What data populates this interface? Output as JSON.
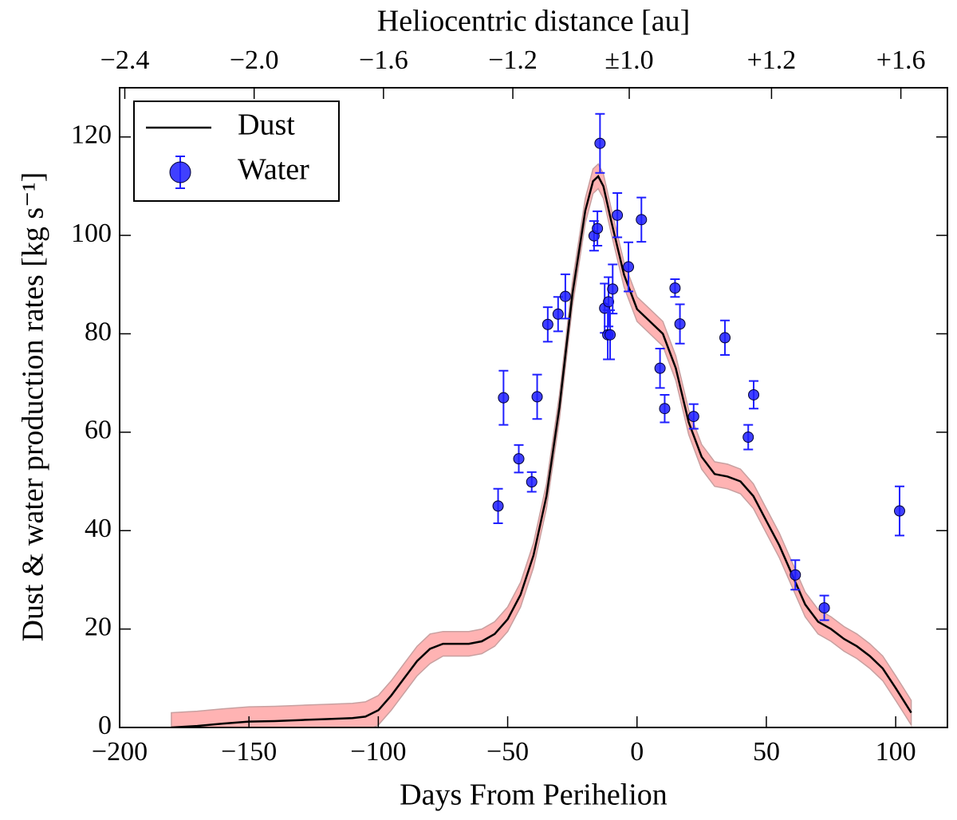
{
  "chart_data": {
    "type": "line",
    "xlabel": "Days From Perihelion",
    "ylabel": "Dust & water production rates [kg s⁻¹]",
    "x2label": "Heliocentric distance [au]",
    "xlim": [
      -200,
      120
    ],
    "ylim": [
      0,
      130
    ],
    "xticks": [
      {
        "value": -200,
        "label": "−200"
      },
      {
        "value": -150,
        "label": "−150"
      },
      {
        "value": -100,
        "label": "−100"
      },
      {
        "value": -50,
        "label": "−50"
      },
      0,
      50,
      100
    ],
    "yticks": [
      0,
      20,
      40,
      60,
      80,
      100,
      120
    ],
    "x2lim": [
      -200,
      120
    ],
    "x2ticks": [
      {
        "value": -198,
        "label": "−2.4"
      },
      {
        "value": -148,
        "label": "−2.0"
      },
      {
        "value": -98,
        "label": "−1.6"
      },
      {
        "value": -48,
        "label": "−1.2"
      },
      {
        "value": -3,
        "label": "±1.0"
      },
      {
        "value": 52,
        "label": "+1.2"
      },
      {
        "value": 102,
        "label": "+1.6"
      }
    ],
    "legend": "upper left",
    "series": [
      {
        "name": "Dust",
        "type": "line",
        "color": "#000000",
        "band_color": "#ffb3b3",
        "x": [
          -180,
          -170,
          -160,
          -150,
          -140,
          -130,
          -120,
          -110,
          -105,
          -100,
          -95,
          -90,
          -85,
          -80,
          -75,
          -70,
          -65,
          -60,
          -55,
          -50,
          -45,
          -40,
          -35,
          -30,
          -25,
          -20,
          -17,
          -15,
          -13,
          -10,
          -5,
          0,
          5,
          10,
          15,
          20,
          25,
          30,
          35,
          40,
          45,
          50,
          55,
          60,
          65,
          70,
          75,
          80,
          85,
          90,
          95,
          100,
          103,
          106
        ],
        "values": [
          0,
          0.3,
          0.8,
          1.2,
          1.3,
          1.5,
          1.7,
          1.9,
          2.2,
          3.5,
          6.5,
          10,
          13.5,
          16,
          17,
          17,
          17,
          17.5,
          19,
          22,
          27,
          35,
          47,
          65,
          88,
          105,
          111,
          112,
          110,
          103,
          92,
          85,
          82.5,
          80,
          73,
          62,
          55,
          51.5,
          51,
          50,
          47,
          42,
          37,
          31,
          25,
          21.5,
          20,
          18,
          16.5,
          14.5,
          12,
          8,
          5.5,
          3
        ],
        "error": [
          3,
          3,
          3,
          3,
          3,
          3,
          3,
          3,
          3,
          3,
          3,
          3,
          3,
          3,
          2.5,
          2.5,
          2.5,
          2.5,
          2.5,
          2.5,
          2.5,
          2.5,
          2.5,
          2.5,
          2.5,
          2.5,
          2.5,
          2.5,
          2.5,
          2.5,
          2.5,
          2.5,
          2.5,
          2.5,
          2.5,
          2.5,
          2.5,
          2.5,
          2.5,
          2.5,
          2.5,
          2.5,
          2.5,
          2.5,
          2.5,
          2.5,
          2.5,
          2.5,
          2.5,
          2.5,
          2.5,
          2.5,
          2.5,
          2.5
        ]
      },
      {
        "name": "Water",
        "type": "errorbar",
        "color": "#1f1fff",
        "x": [
          -53.7,
          -51.6,
          -45.7,
          -40.7,
          -38.6,
          -34.5,
          -30.5,
          -27.7,
          -16.6,
          -15.3,
          -14.3,
          -12.5,
          -11.3,
          -11,
          -10.4,
          -9.4,
          -7.6,
          -3.3,
          1.7,
          8.9,
          10.7,
          14.7,
          16.6,
          21.9,
          34,
          43,
          45.1,
          61.2,
          72.4,
          101.5
        ],
        "values": [
          45,
          67,
          54.6,
          49.9,
          67.2,
          81.9,
          84,
          87.6,
          99.9,
          101.4,
          118.7,
          85.2,
          79.8,
          86.5,
          79.8,
          89.1,
          104.1,
          93.6,
          103.2,
          73,
          64.8,
          89.3,
          82,
          63.2,
          79.2,
          59,
          67.6,
          31,
          24.3,
          44
        ],
        "error": [
          3.5,
          5.5,
          2.8,
          2,
          4.5,
          3.5,
          3.5,
          4.5,
          3,
          3.5,
          6,
          5,
          5,
          5,
          5,
          5,
          4.5,
          5,
          4.5,
          4,
          2.8,
          1.8,
          4,
          2.5,
          3.5,
          2.5,
          2.8,
          3,
          2.5,
          5
        ]
      }
    ]
  }
}
